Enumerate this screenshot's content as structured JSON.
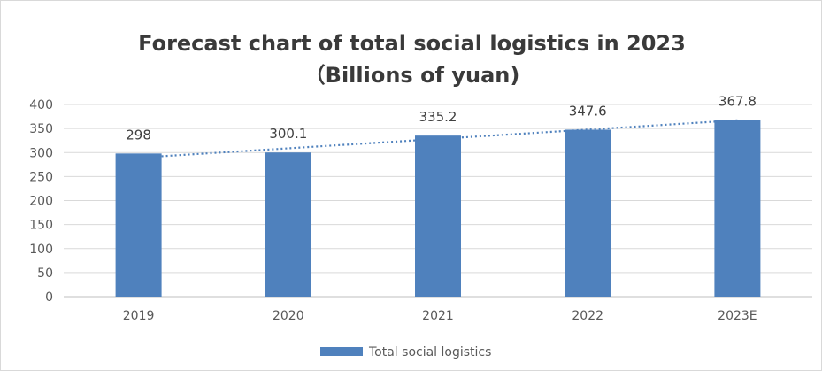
{
  "chart_data": {
    "type": "bar",
    "title": "Forecast chart of total social logistics in 2023",
    "subtitle": "（Billions of yuan)",
    "categories": [
      "2019",
      "2020",
      "2021",
      "2022",
      "2023E"
    ],
    "series": [
      {
        "name": "Total social logistics",
        "values": [
          298,
          300.1,
          335.2,
          347.6,
          367.8
        ],
        "color": "#4f81bd"
      }
    ],
    "data_labels": [
      "298",
      "300.1",
      "335.2",
      "347.6",
      "367.8"
    ],
    "trendline": {
      "type": "linear",
      "style": "dotted",
      "color": "#4f81bd"
    },
    "ylim": [
      0,
      400
    ],
    "yticks": [
      0,
      50,
      100,
      150,
      200,
      250,
      300,
      350,
      400
    ],
    "grid": true,
    "legend": "bottom",
    "xlabel": "",
    "ylabel": ""
  }
}
